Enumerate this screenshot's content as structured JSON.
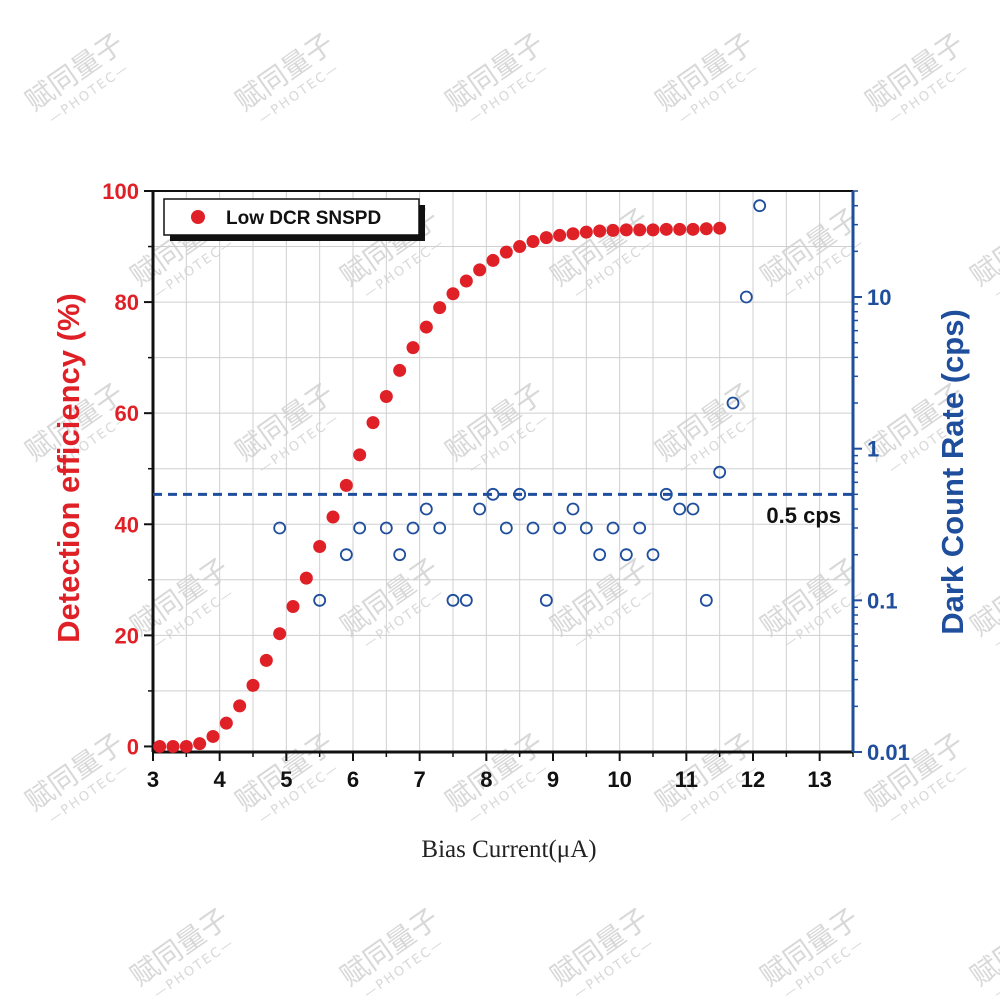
{
  "watermark": {
    "brand": "赋同量子",
    "sub": "—PHOTEC—"
  },
  "chart_data": {
    "type": "scatter",
    "title": "",
    "xlabel": "Bias Current(μA)",
    "ylabel_left": "Detection efficiency (%)",
    "ylabel_right": "Dark Count Rate (cps)",
    "xlim": [
      3,
      13.5
    ],
    "ylim_left": [
      -1,
      100
    ],
    "ylim_right": [
      0.01,
      50
    ],
    "yscale_right": "log",
    "x_ticks": [
      "3",
      "4",
      "5",
      "6",
      "7",
      "8",
      "9",
      "10",
      "11",
      "12",
      "13"
    ],
    "y_left_ticks": [
      "0",
      "20",
      "40",
      "60",
      "80",
      "100"
    ],
    "y_right_ticks": [
      "0.01",
      "0.1",
      "1",
      "10"
    ],
    "grid": true,
    "legend_position": "top-left",
    "colors": {
      "efficiency": "#e02027",
      "dark_count": "#1f4e9c",
      "axis": "#111111"
    },
    "series": [
      {
        "name": "Low DCR SNSPD",
        "axis": "left",
        "marker": "filled-circle",
        "x": [
          3.1,
          3.3,
          3.5,
          3.7,
          3.9,
          4.1,
          4.3,
          4.5,
          4.7,
          4.9,
          5.1,
          5.3,
          5.5,
          5.7,
          5.9,
          6.1,
          6.3,
          6.5,
          6.7,
          6.9,
          7.1,
          7.3,
          7.5,
          7.7,
          7.9,
          8.1,
          8.3,
          8.5,
          8.7,
          8.9,
          9.1,
          9.3,
          9.5,
          9.7,
          9.9,
          10.1,
          10.3,
          10.5,
          10.7,
          10.9,
          11.1,
          11.3,
          11.5
        ],
        "values": [
          0,
          0,
          0,
          0.5,
          1.8,
          4.2,
          7.3,
          11,
          15.5,
          20.3,
          25.2,
          30.3,
          36,
          41.3,
          47,
          52.5,
          58.3,
          63,
          67.7,
          71.8,
          75.5,
          79,
          81.5,
          83.8,
          85.8,
          87.5,
          89,
          90,
          90.9,
          91.6,
          92,
          92.3,
          92.6,
          92.8,
          92.9,
          93,
          93,
          93,
          93.1,
          93.1,
          93.1,
          93.2,
          93.3
        ]
      },
      {
        "name": "Dark Count Rate",
        "axis": "right",
        "marker": "open-circle",
        "x": [
          4.9,
          5.5,
          5.9,
          6.1,
          6.5,
          6.7,
          6.9,
          7.1,
          7.3,
          7.5,
          7.7,
          7.9,
          8.1,
          8.3,
          8.5,
          8.7,
          8.9,
          9.1,
          9.3,
          9.5,
          9.7,
          9.9,
          10.1,
          10.3,
          10.5,
          10.7,
          10.9,
          11.1,
          11.3,
          11.5,
          11.7,
          11.9,
          12.1
        ],
        "values": [
          0.3,
          0.1,
          0.2,
          0.3,
          0.3,
          0.2,
          0.3,
          0.4,
          0.3,
          0.1,
          0.1,
          0.4,
          0.5,
          0.3,
          0.5,
          0.3,
          0.1,
          0.3,
          0.4,
          0.3,
          0.2,
          0.3,
          0.2,
          0.3,
          0.2,
          0.5,
          0.4,
          0.4,
          0.1,
          0.7,
          2,
          10,
          40
        ]
      }
    ],
    "reference_line": {
      "axis": "right",
      "value": 0.5,
      "style": "dashed",
      "label": "0.5 cps"
    }
  }
}
